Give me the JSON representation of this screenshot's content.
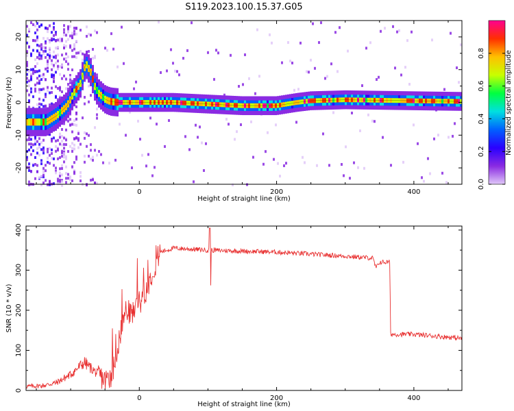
{
  "title": "S119.2023.100.15.37.G05",
  "chart_data": [
    {
      "type": "heatmap",
      "xlabel": "Height of straight line (km)",
      "ylabel": "Frequency (Hz)",
      "xlim": [
        -165,
        470
      ],
      "ylim": [
        -25,
        25
      ],
      "xticks": [
        0,
        200,
        400
      ],
      "yticks": [
        -20,
        -10,
        0,
        10,
        20
      ],
      "grid": false,
      "colorbar": {
        "label": "Normalized spectral amplitude",
        "range": [
          0,
          1
        ],
        "ticks": [
          0.0,
          0.2,
          0.4,
          0.6,
          0.8
        ],
        "tick_labels": [
          "0.0",
          "0.2",
          "0.4",
          "0.6",
          "0.8"
        ],
        "colormap": [
          "#e0c8f8",
          "#8a2be2",
          "#2a00ff",
          "#0060ff",
          "#00e0e0",
          "#00ff40",
          "#c8ff00",
          "#ffc000",
          "#ff3000",
          "#ff0090"
        ]
      },
      "ridge": {
        "x": [
          -135,
          -120,
          -105,
          -95,
          -85,
          -78,
          -70,
          -65,
          -60,
          -55,
          -50,
          -45,
          -40,
          -30,
          0,
          50,
          100,
          150,
          200,
          230,
          250,
          300,
          400,
          470
        ],
        "y": [
          -6,
          -4,
          -1,
          3,
          6,
          12,
          9,
          5,
          3,
          2,
          1,
          0.5,
          0.2,
          0,
          0,
          0,
          -0.5,
          -1,
          -1,
          0,
          0.5,
          0.8,
          0.5,
          0.3
        ]
      }
    },
    {
      "type": "line",
      "xlabel": "Height of straight line (km)",
      "ylabel": "SNR (10 * v/v)",
      "xlim": [
        -165,
        470
      ],
      "ylim": [
        0,
        410
      ],
      "xticks": [
        0,
        200,
        400
      ],
      "yticks": [
        0,
        100,
        200,
        300,
        400
      ],
      "color": "#e83030",
      "grid": false,
      "trend": {
        "x": [
          -165,
          -140,
          -120,
          -100,
          -80,
          -60,
          -50,
          -40,
          -30,
          -20,
          -10,
          0,
          10,
          20,
          30,
          50,
          100,
          200,
          300,
          340,
          345,
          350,
          365,
          366,
          400,
          470
        ],
        "y": [
          10,
          12,
          20,
          40,
          70,
          40,
          25,
          40,
          120,
          200,
          190,
          230,
          250,
          300,
          345,
          355,
          350,
          345,
          335,
          330,
          305,
          320,
          320,
          140,
          140,
          130
        ]
      }
    }
  ]
}
